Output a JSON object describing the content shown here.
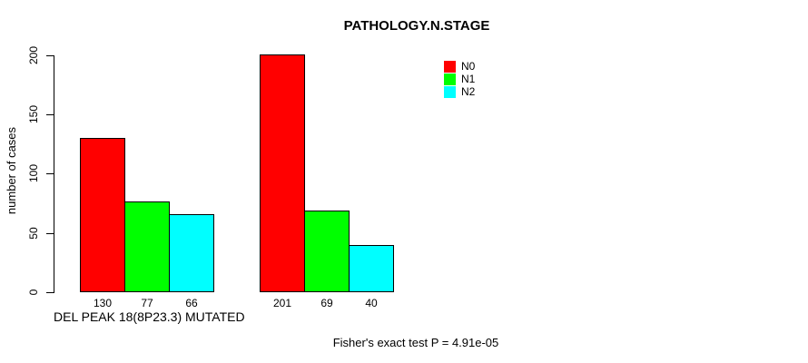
{
  "chart_data": {
    "type": "bar",
    "title": "PATHOLOGY.N.STAGE",
    "ylabel": "number of cases",
    "xlabel": "DEL PEAK 18(8P23.3) MUTATED",
    "annotation": "Fisher's exact test P = 4.91e-05",
    "groups": [
      "DEL PEAK 18(8P23.3) MUTATED",
      ""
    ],
    "series": [
      {
        "name": "N0",
        "color": "#FF0000",
        "values": [
          130,
          201
        ]
      },
      {
        "name": "N1",
        "color": "#00FF00",
        "values": [
          77,
          69
        ]
      },
      {
        "name": "N2",
        "color": "#00FFFF",
        "values": [
          66,
          40
        ]
      }
    ],
    "yticks": [
      0,
      50,
      100,
      150,
      200
    ],
    "ylim": [
      0,
      200
    ],
    "grid": false,
    "legend_position": "top-right",
    "bar_border_color": "#000000",
    "background_color": "#FFFFFF"
  }
}
